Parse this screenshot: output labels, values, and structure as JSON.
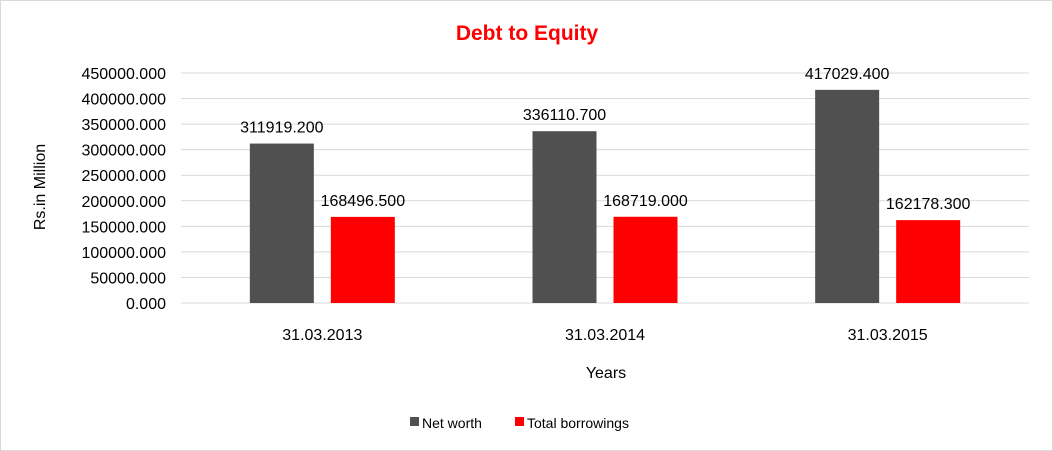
{
  "chart_data": {
    "type": "bar",
    "title": "Debt to Equity",
    "title_color": "#ff0000",
    "xlabel": "Years",
    "ylabel": "Rs.in Million",
    "categories": [
      "31.03.2013",
      "31.03.2014",
      "31.03.2015"
    ],
    "series": [
      {
        "name": "Net worth",
        "color": "#505050",
        "values": [
          311919.2,
          336110.7,
          417029.4
        ],
        "labels": [
          "311919.200",
          "336110.700",
          "417029.400"
        ]
      },
      {
        "name": "Total borrowings",
        "color": "#ff0000",
        "values": [
          168496.5,
          168719.0,
          162178.3
        ],
        "labels": [
          "168496.500",
          "168719.000",
          "162178.300"
        ]
      }
    ],
    "ylim": [
      0,
      450000
    ],
    "yticks": [
      0,
      50000,
      100000,
      150000,
      200000,
      250000,
      300000,
      350000,
      400000,
      450000
    ],
    "ytick_labels": [
      "0.000",
      "50000.000",
      "100000.000",
      "150000.000",
      "200000.000",
      "250000.000",
      "300000.000",
      "350000.000",
      "400000.000",
      "450000.000"
    ],
    "grid": true,
    "gridline_color": "#d9d9d9",
    "legend_position": "bottom"
  }
}
